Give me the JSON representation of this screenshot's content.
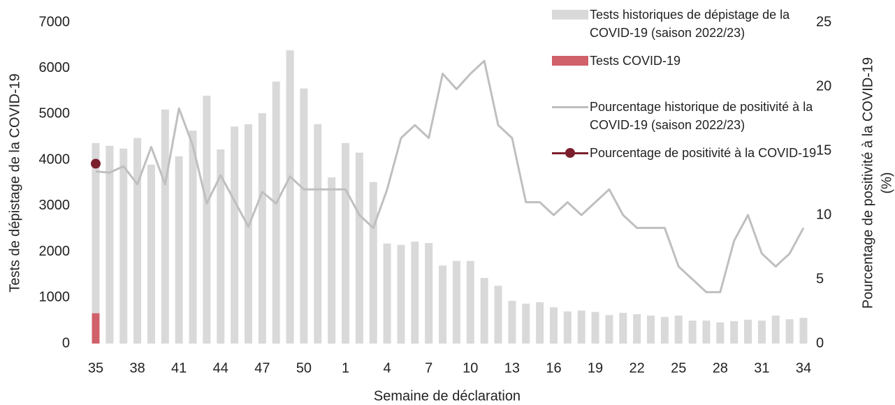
{
  "chart_data": {
    "type": "bar",
    "x_label": "Semaine de déclaration",
    "y_label": "Tests de dépistage de la COVID-19",
    "y2_label": [
      "Pourcentage de positivité à la COVID-19",
      "(%)"
    ],
    "categories": [
      "35",
      null,
      null,
      "38",
      null,
      null,
      "41",
      null,
      null,
      "44",
      null,
      null,
      "47",
      null,
      null,
      "50",
      null,
      null,
      "1",
      null,
      null,
      "4",
      null,
      null,
      "7",
      null,
      null,
      "10",
      null,
      null,
      "13",
      null,
      null,
      "16",
      null,
      null,
      "19",
      null,
      null,
      "22",
      null,
      null,
      "25",
      null,
      null,
      "28",
      null,
      null,
      "31",
      null,
      null,
      "34"
    ],
    "ylim": [
      0,
      7000
    ],
    "yticks": [
      0,
      1000,
      2000,
      3000,
      4000,
      5000,
      6000,
      7000
    ],
    "y2lim": [
      0,
      25
    ],
    "y2ticks": [
      0,
      5,
      10,
      15,
      20,
      25
    ],
    "legend": "top-right",
    "series": [
      {
        "name": "Tests historiques de dépistage de la COVID-19 (saison 2022/23)",
        "type": "bar",
        "color": "#d9d9d9",
        "values": [
          4370,
          4310,
          4250,
          4480,
          3900,
          5100,
          4080,
          4640,
          5400,
          4230,
          4730,
          4780,
          5020,
          5710,
          6390,
          5560,
          4780,
          3620,
          4370,
          4160,
          3520,
          2180,
          2150,
          2220,
          2190,
          1700,
          1800,
          1800,
          1430,
          1260,
          930,
          870,
          900,
          790,
          700,
          720,
          690,
          620,
          670,
          640,
          610,
          580,
          610,
          500,
          500,
          460,
          490,
          520,
          500,
          610,
          530,
          560
        ]
      },
      {
        "name": "Tests COVID-19",
        "type": "bar",
        "color": "#d0606a",
        "values": [
          660,
          null,
          null,
          null,
          null,
          null,
          null,
          null,
          null,
          null,
          null,
          null,
          null,
          null,
          null,
          null,
          null,
          null,
          null,
          null,
          null,
          null,
          null,
          null,
          null,
          null,
          null,
          null,
          null,
          null,
          null,
          null,
          null,
          null,
          null,
          null,
          null,
          null,
          null,
          null,
          null,
          null,
          null,
          null,
          null,
          null,
          null,
          null,
          null,
          null,
          null,
          null
        ]
      },
      {
        "name": "Pourcentage historique de positivité à la COVID-19 (saison 2022/23)",
        "type": "line",
        "axis": "y2",
        "color": "#bfbfbf",
        "values": [
          13.4,
          13.3,
          13.8,
          12.4,
          15.3,
          12.4,
          18.3,
          15.4,
          10.9,
          13.1,
          11.1,
          9.1,
          11.8,
          10.9,
          13.0,
          12,
          12,
          12,
          12,
          10,
          9,
          12,
          16,
          17,
          16,
          21,
          19.8,
          21,
          22,
          17,
          16,
          11,
          11,
          10,
          11,
          10,
          11,
          12,
          10,
          9,
          9,
          9,
          6,
          5,
          4,
          4,
          8,
          10,
          7,
          6,
          7,
          9
        ]
      },
      {
        "name": "Pourcentage de positivité à la COVID-19",
        "type": "line",
        "axis": "y2",
        "color": "#7b1f2d",
        "marker": true,
        "values": [
          14,
          null,
          null,
          null,
          null,
          null,
          null,
          null,
          null,
          null,
          null,
          null,
          null,
          null,
          null,
          null,
          null,
          null,
          null,
          null,
          null,
          null,
          null,
          null,
          null,
          null,
          null,
          null,
          null,
          null,
          null,
          null,
          null,
          null,
          null,
          null,
          null,
          null,
          null,
          null,
          null,
          null,
          null,
          null,
          null,
          null,
          null,
          null,
          null,
          null,
          null,
          null
        ]
      }
    ]
  }
}
